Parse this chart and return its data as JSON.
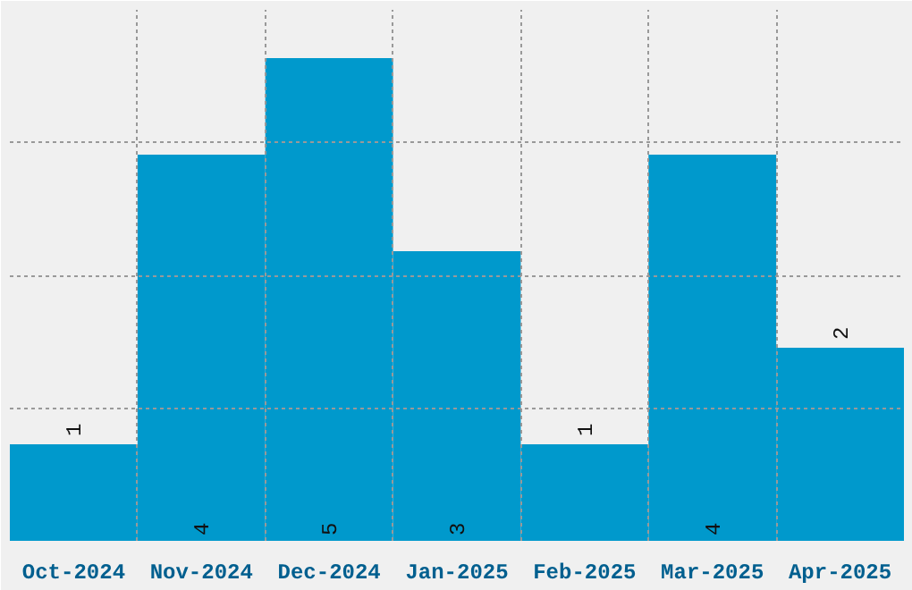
{
  "chart_data": {
    "type": "bar",
    "categories": [
      "Oct-2024",
      "Nov-2024",
      "Dec-2024",
      "Jan-2025",
      "Feb-2025",
      "Mar-2025",
      "Apr-2025"
    ],
    "values": [
      1,
      4,
      5,
      3,
      1,
      4,
      2
    ],
    "color": "#0099cc",
    "ylim": [
      0,
      5.5
    ],
    "yticks": [
      {
        "value": 1.375,
        "label": null
      },
      {
        "value": 2.75,
        "label": null
      },
      {
        "value": 4.125,
        "label": null
      }
    ],
    "grid": true,
    "data_labels": true,
    "tick_labels": "x"
  }
}
